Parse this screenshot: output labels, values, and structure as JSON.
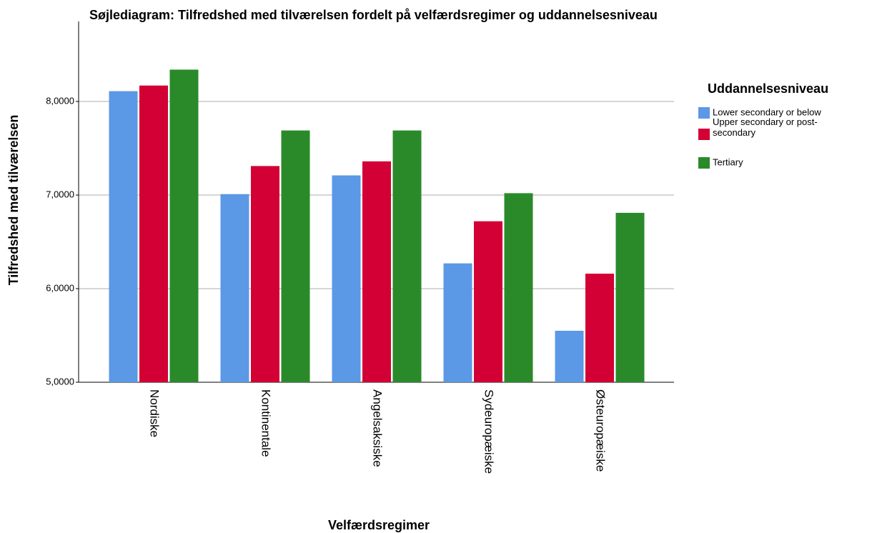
{
  "chart_data": {
    "type": "bar",
    "title": "Søjlediagram: Tilfredshed med tilværelsen fordelt på velfærdsregimer og uddannelsesniveau",
    "x_label": "Velfærdsregimer",
    "y_label": "Tilfredshed med tilværelsen",
    "legend_title": "Uddannelsesniveau",
    "legend": "right",
    "grid": true,
    "categories": [
      "Nordiske",
      "Kontinentale",
      "Angelsaksiske",
      "Sydeuropæiske",
      "Østeuropæiske"
    ],
    "series": [
      {
        "name": "Lower secondary or below",
        "color": "#5b98e6",
        "values": [
          8.11,
          7.01,
          7.21,
          6.27,
          5.55
        ]
      },
      {
        "name": "Upper secondary or post-secondary",
        "color": "#d20034",
        "values": [
          8.17,
          7.31,
          7.36,
          6.72,
          6.16
        ]
      },
      {
        "name": "Tertiary",
        "color": "#2a8a2a",
        "values": [
          8.34,
          7.69,
          7.69,
          7.02,
          6.81
        ]
      }
    ],
    "ylim": [
      5,
      9
    ],
    "yticks": [
      {
        "value": 5,
        "label": "5,0000"
      },
      {
        "value": 6,
        "label": "6,0000"
      },
      {
        "value": 7,
        "label": "7,0000"
      },
      {
        "value": 8,
        "label": "8,0000"
      }
    ]
  }
}
